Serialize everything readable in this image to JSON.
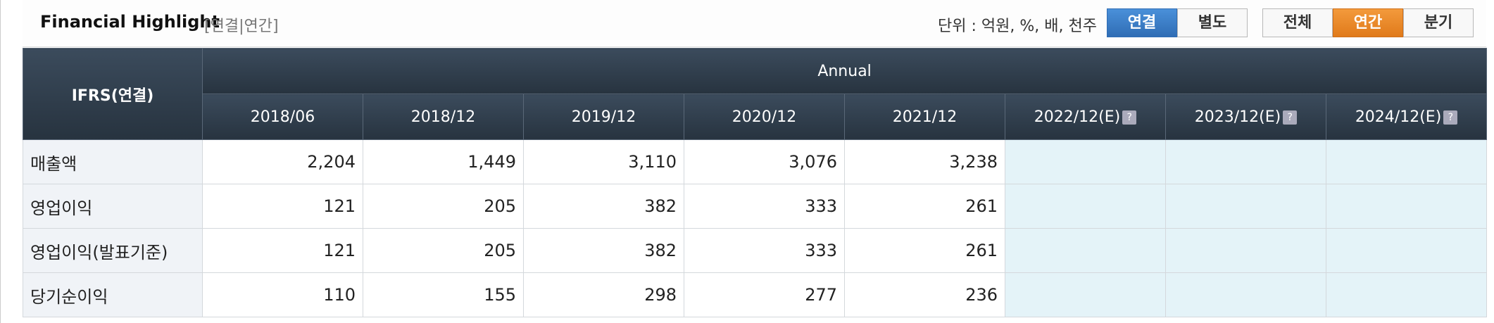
{
  "header": {
    "title": "Financial Highlight",
    "scope": "[연결|연간]",
    "unit": "단위 : 억원, %, 배, 천주",
    "buttons": [
      "연결",
      "별도",
      "전체",
      "연간",
      "분기"
    ]
  },
  "table": {
    "corner": "IFRS(연결)",
    "group": "Annual",
    "columns": [
      "2018/06",
      "2018/12",
      "2019/12",
      "2020/12",
      "2021/12",
      "2022/12(E)",
      "2023/12(E)",
      "2024/12(E)"
    ],
    "rows": [
      {
        "label": "매출액",
        "values": [
          "2,204",
          "1,449",
          "3,110",
          "3,076",
          "3,238"
        ]
      },
      {
        "label": "영업이익",
        "values": [
          "121",
          "205",
          "382",
          "333",
          "261"
        ]
      },
      {
        "label": "영업이익(발표기준)",
        "values": [
          "121",
          "205",
          "382",
          "333",
          "261"
        ]
      },
      {
        "label": "당기순이익",
        "values": [
          "110",
          "155",
          "298",
          "277",
          "236"
        ]
      }
    ]
  }
}
